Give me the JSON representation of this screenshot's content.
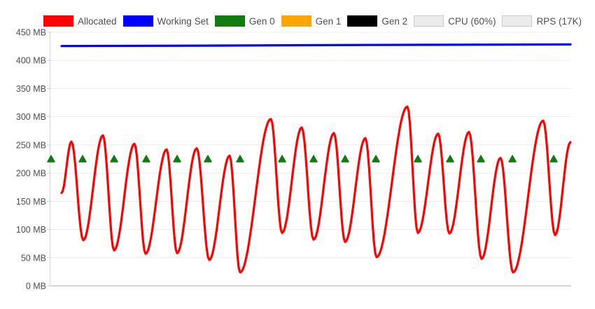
{
  "app": {
    "title": "Memory monitor chart",
    "background": "#ffffff"
  },
  "colors": {
    "allocated": "#ff0000",
    "working_set": "#0000ff",
    "gen0": "#0e7c0e",
    "gen1": "#ffa500",
    "gen2": "#000000",
    "disabled_swatch_fill": "#ececec",
    "disabled_swatch_border": "#c9c9c9",
    "text": "#4f4f4f",
    "gridline": "#ececec",
    "baseline": "#ababab",
    "axis_line": "#d6d6d6",
    "tick": "#cfcfcf"
  },
  "legend": {
    "items": [
      {
        "id": "allocated",
        "label": "Allocated",
        "color": "#ff0000",
        "enabled": true
      },
      {
        "id": "working-set",
        "label": "Working Set",
        "color": "#0000ff",
        "enabled": true
      },
      {
        "id": "gen-0",
        "label": "Gen 0",
        "color": "#0e7c0e",
        "enabled": true
      },
      {
        "id": "gen-1",
        "label": "Gen 1",
        "color": "#ffa500",
        "enabled": true
      },
      {
        "id": "gen-2",
        "label": "Gen 2",
        "color": "#000000",
        "enabled": true
      },
      {
        "id": "cpu",
        "label": "CPU (60%)",
        "color": "#ececec",
        "enabled": false
      },
      {
        "id": "rps",
        "label": "RPS (17K)",
        "color": "#ececec",
        "enabled": false
      }
    ]
  },
  "chart_data": {
    "type": "line",
    "title": "",
    "xlabel": "",
    "ylabel": "MB",
    "ylim": [
      0,
      450
    ],
    "xlim": [
      0,
      100
    ],
    "grid": "horizontal",
    "legend_position": "top",
    "y_ticks": [
      {
        "label": "450 MB",
        "value": 450
      },
      {
        "label": "400 MB",
        "value": 400
      },
      {
        "label": "350 MB",
        "value": 350
      },
      {
        "label": "300 MB",
        "value": 300
      },
      {
        "label": "250 MB",
        "value": 250
      },
      {
        "label": "200 MB",
        "value": 200
      },
      {
        "label": "150 MB",
        "value": 150
      },
      {
        "label": "100 MB",
        "value": 100
      },
      {
        "label": "50 MB",
        "value": 50
      },
      {
        "label": "0 MB",
        "value": 0
      }
    ],
    "series": [
      {
        "name": "Allocated",
        "type": "smooth-line",
        "color": "#ff0000",
        "stroke_width": 3.2,
        "unit": "MB",
        "points": [
          [
            2.15,
            165
          ],
          [
            4.03,
            256
          ],
          [
            6.32,
            81
          ],
          [
            10.08,
            267
          ],
          [
            12.23,
            63
          ],
          [
            16.13,
            252
          ],
          [
            18.28,
            57
          ],
          [
            22.31,
            242
          ],
          [
            24.33,
            58
          ],
          [
            28.09,
            244
          ],
          [
            30.51,
            46
          ],
          [
            34.41,
            231
          ],
          [
            36.42,
            24
          ],
          [
            42.34,
            296
          ],
          [
            44.49,
            94
          ],
          [
            48.25,
            281
          ],
          [
            50.54,
            82
          ],
          [
            54.44,
            271
          ],
          [
            56.59,
            78
          ],
          [
            60.48,
            262
          ],
          [
            62.63,
            51
          ],
          [
            68.55,
            318
          ],
          [
            70.56,
            94
          ],
          [
            74.46,
            270
          ],
          [
            76.61,
            93
          ],
          [
            80.38,
            273
          ],
          [
            82.8,
            48
          ],
          [
            86.42,
            227
          ],
          [
            88.84,
            24
          ],
          [
            94.62,
            293
          ],
          [
            96.91,
            90
          ],
          [
            99.87,
            255
          ]
        ]
      },
      {
        "name": "Working Set",
        "type": "line",
        "color": "#0000ff",
        "stroke_width": 3.2,
        "unit": "MB",
        "points": [
          [
            2.15,
            425.5
          ],
          [
            30,
            426.2
          ],
          [
            60,
            427.4
          ],
          [
            99.87,
            428.4
          ]
        ]
      },
      {
        "name": "Gen 0",
        "type": "scatter-triangle",
        "color": "#0e7c0e",
        "marker_value": 225,
        "unit": "MB",
        "x": [
          0.13,
          6.18,
          12.23,
          18.41,
          24.33,
          30.24,
          36.42,
          44.49,
          50.54,
          56.59,
          62.5,
          70.56,
          76.75,
          82.66,
          88.71,
          96.64
        ]
      },
      {
        "name": "Gen 1",
        "type": "scatter-triangle",
        "color": "#ffa500",
        "marker_value": null,
        "unit": "MB",
        "x": []
      },
      {
        "name": "Gen 2",
        "type": "scatter-triangle",
        "color": "#000000",
        "marker_value": null,
        "unit": "MB",
        "x": []
      }
    ]
  }
}
